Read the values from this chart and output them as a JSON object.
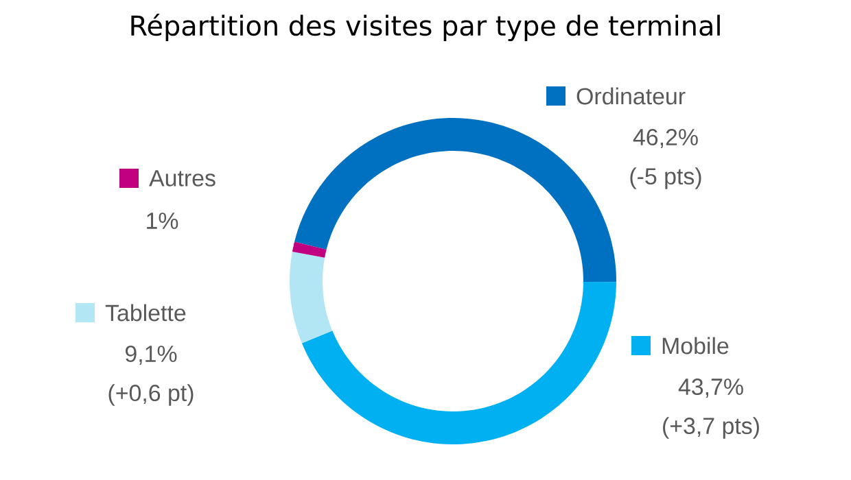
{
  "chart_data": {
    "type": "donut",
    "title": "Répartition des visites par type de terminal",
    "categories": [
      "Ordinateur",
      "Mobile",
      "Tablette",
      "Autres"
    ],
    "values": [
      46.2,
      43.7,
      9.1,
      1
    ],
    "colors": [
      "#0070c0",
      "#00b0f0",
      "#b3e6f5",
      "#c0007f"
    ],
    "value_labels": [
      "46,2%",
      "43,7%",
      "9,1%",
      "1%"
    ],
    "legend": "top left",
    "annotations": [
      "(-5 pts)",
      "(+3,7 pts)",
      "(+0,6 pt)"
    ]
  }
}
